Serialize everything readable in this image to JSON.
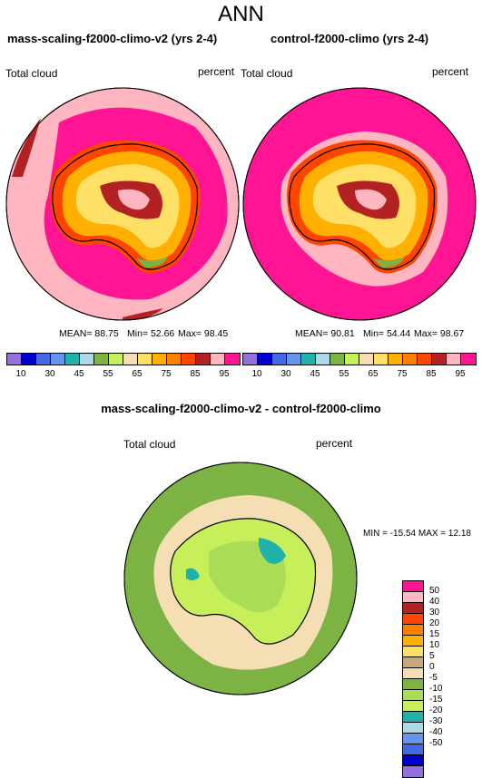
{
  "title": "ANN",
  "left_panel": {
    "title": "mass-scaling-f2000-climo-v2 (yrs 2-4)",
    "label_left": "Total cloud",
    "label_right": "percent",
    "stats": {
      "mean": "MEAN= 88.75",
      "min": "Min= 52.66",
      "max": "Max= 98.45"
    }
  },
  "right_panel": {
    "title": "control-f2000-climo (yrs 2-4)",
    "label_left": "Total cloud",
    "label_right": "percent",
    "stats": {
      "mean": "MEAN= 90.81",
      "min": "Min= 54.44",
      "max": "Max= 98.67"
    }
  },
  "diff_panel": {
    "title": "mass-scaling-f2000-climo-v2 - control-f2000-climo",
    "label_left": "Total cloud",
    "label_right": "percent",
    "minmax": "MIN = -15.54 MAX = 12.18"
  },
  "colorbar_top": {
    "colors": [
      "#9370db",
      "#0000cd",
      "#4169e1",
      "#6495ed",
      "#20b2aa",
      "#add8e6",
      "#7cb342",
      "#c6ef5a",
      "#f5deb3",
      "#ffe066",
      "#ffb000",
      "#ff7f00",
      "#ff4500",
      "#b22222",
      "#ffb6c1",
      "#ff1493"
    ],
    "labels": [
      "10",
      "30",
      "45",
      "55",
      "65",
      "75",
      "85",
      "95"
    ]
  },
  "colorbar_diff": {
    "colors": [
      "#ff1493",
      "#ffb6c1",
      "#b22222",
      "#ff4500",
      "#ff7f00",
      "#ffb000",
      "#ffe066",
      "#c8a87a",
      "#f5deb3",
      "#7cb342",
      "#a8dd55",
      "#c6ef5a",
      "#20b2aa",
      "#add8e6",
      "#6495ed",
      "#4169e1",
      "#0000cd",
      "#9370db"
    ],
    "labels": [
      "50",
      "40",
      "30",
      "20",
      "15",
      "10",
      "5",
      "0",
      "-5",
      "-10",
      "-15",
      "-20",
      "-30",
      "-40",
      "-50"
    ]
  }
}
